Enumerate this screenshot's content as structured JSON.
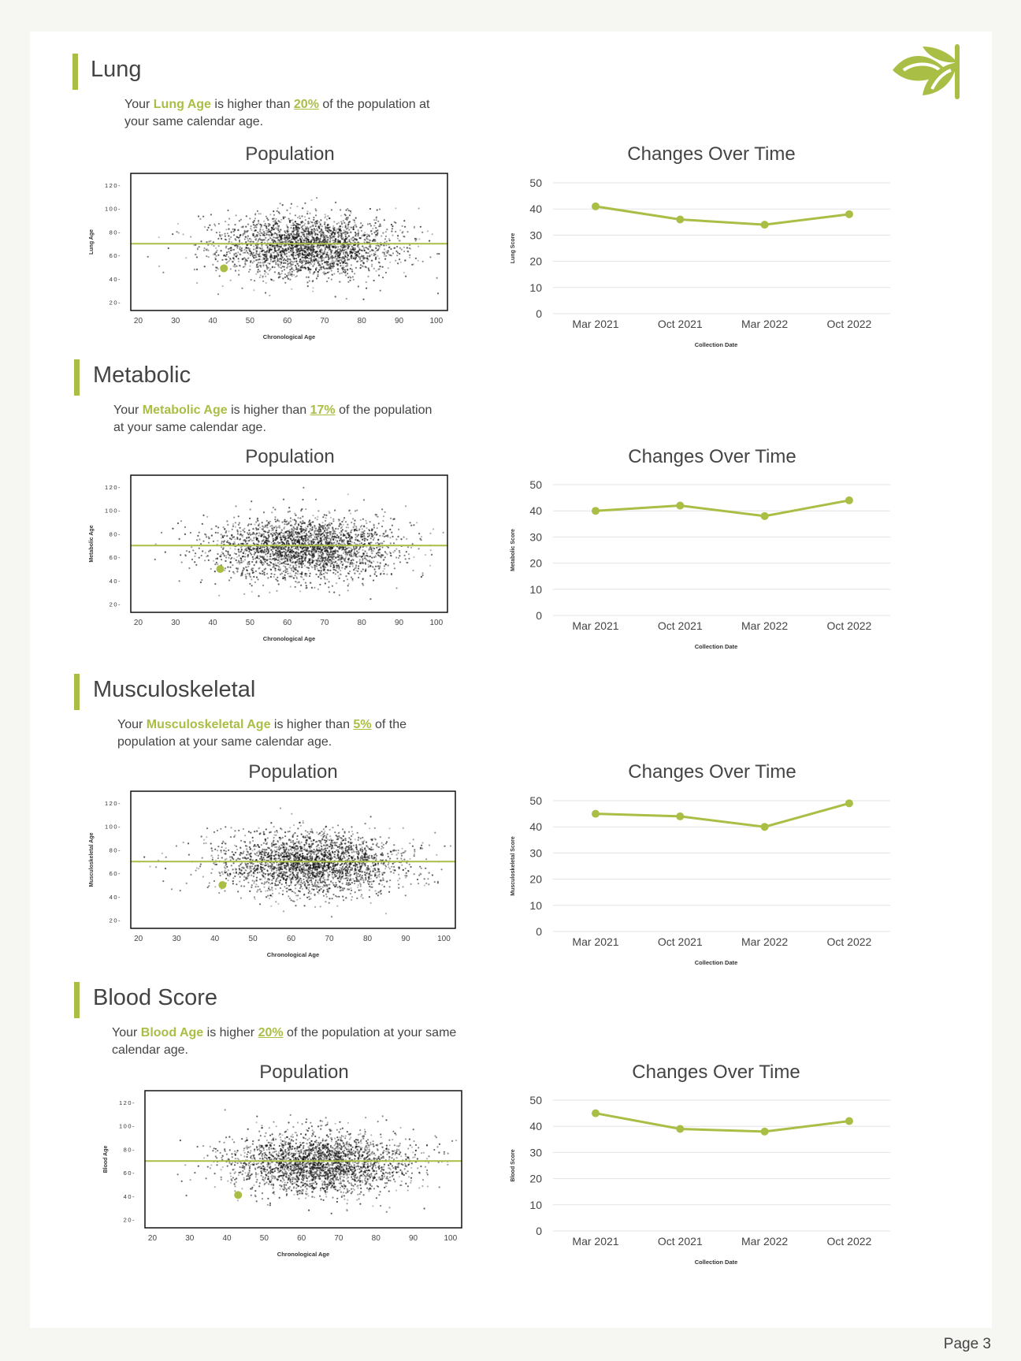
{
  "page": {
    "page_label": "Page 3"
  },
  "colors": {
    "accent": "#a9be45",
    "page_bg": "#f6f6f3",
    "sheet_bg": "#ffffff",
    "text": "#444444"
  },
  "logo": {
    "icon": "leaf-sprout-logo-icon"
  },
  "sections": [
    {
      "title": "Lung",
      "desc_pre": "Your ",
      "desc_highlight": "Lung Age",
      "desc_mid": " is higher than ",
      "desc_pct": "20%",
      "desc_post": " of the population at your same calendar age."
    },
    {
      "title": "Metabolic",
      "desc_pre": "Your ",
      "desc_highlight": "Metabolic Age",
      "desc_mid": " is higher than ",
      "desc_pct": "17%",
      "desc_post": " of the population at your same calendar age."
    },
    {
      "title": "Musculoskeletal",
      "desc_pre": "Your ",
      "desc_highlight": "Musculoskeletal Age",
      "desc_mid": " is higher than ",
      "desc_pct": "5%",
      "desc_post": " of the population at your same calendar age."
    },
    {
      "title": "Blood Score",
      "desc_pre": "Your ",
      "desc_highlight": "Blood Age",
      "desc_mid": " is higher ",
      "desc_pct": "20%",
      "desc_post": " of the population at your same calendar age."
    }
  ],
  "chart_data": [
    {
      "type": "scatter",
      "title": "Population",
      "xlabel": "Chronological Age",
      "ylabel": "Lung Age",
      "x_ticks": [
        "20",
        "30",
        "40",
        "50",
        "60",
        "70",
        "80",
        "90",
        "100"
      ],
      "y_ticks": [
        "120",
        "100",
        "80",
        "60",
        "40",
        "20"
      ],
      "xlim": [
        18,
        103
      ],
      "ylim": [
        13,
        130
      ],
      "reference_line_y": 70,
      "highlight_point": {
        "x": 43,
        "y": 49
      },
      "population_density": {
        "center_x": 65,
        "center_y": 68,
        "spread_x": 12,
        "spread_y": 13
      }
    },
    {
      "type": "line",
      "title": "Changes Over Time",
      "xlabel": "Collection Date",
      "ylabel": "Lung Score",
      "categories": [
        "Mar 2021",
        "Oct 2021",
        "Mar 2022",
        "Oct 2022"
      ],
      "values": [
        41,
        36,
        34,
        38
      ],
      "y_ticks": [
        "50",
        "40",
        "30",
        "20",
        "10",
        "0"
      ],
      "ylim": [
        0,
        50
      ],
      "grid": true
    },
    {
      "type": "scatter",
      "title": "Population",
      "xlabel": "Chronological Age",
      "ylabel": "Metabolic Age",
      "x_ticks": [
        "20",
        "30",
        "40",
        "50",
        "60",
        "70",
        "80",
        "90",
        "100"
      ],
      "y_ticks": [
        "120",
        "100",
        "80",
        "60",
        "40",
        "20"
      ],
      "xlim": [
        18,
        103
      ],
      "ylim": [
        13,
        130
      ],
      "reference_line_y": 70,
      "highlight_point": {
        "x": 42,
        "y": 50
      },
      "population_density": {
        "center_x": 65,
        "center_y": 68,
        "spread_x": 12,
        "spread_y": 13
      }
    },
    {
      "type": "line",
      "title": "Changes Over Time",
      "xlabel": "Collection Date",
      "ylabel": "Metabolic Score",
      "categories": [
        "Mar 2021",
        "Oct 2021",
        "Mar 2022",
        "Oct 2022"
      ],
      "values": [
        40,
        42,
        38,
        44
      ],
      "y_ticks": [
        "50",
        "40",
        "30",
        "20",
        "10",
        "0"
      ],
      "ylim": [
        0,
        50
      ],
      "grid": true
    },
    {
      "type": "scatter",
      "title": "Population",
      "xlabel": "Chronological Age",
      "ylabel": "Musculoskeletal Age",
      "x_ticks": [
        "20",
        "30",
        "40",
        "50",
        "60",
        "70",
        "80",
        "90",
        "100"
      ],
      "y_ticks": [
        "120",
        "100",
        "80",
        "60",
        "40",
        "20"
      ],
      "xlim": [
        18,
        103
      ],
      "ylim": [
        13,
        130
      ],
      "reference_line_y": 70,
      "highlight_point": {
        "x": 42,
        "y": 50
      },
      "population_density": {
        "center_x": 65,
        "center_y": 68,
        "spread_x": 12,
        "spread_y": 13
      }
    },
    {
      "type": "line",
      "title": "Changes Over Time",
      "xlabel": "Collection Date",
      "ylabel": "Musculoskeletal Score",
      "categories": [
        "Mar 2021",
        "Oct 2021",
        "Mar 2022",
        "Oct 2022"
      ],
      "values": [
        45,
        44,
        40,
        49
      ],
      "y_ticks": [
        "50",
        "40",
        "30",
        "20",
        "10",
        "0"
      ],
      "ylim": [
        0,
        50
      ],
      "grid": true
    },
    {
      "type": "scatter",
      "title": "Population",
      "xlabel": "Chronological Age",
      "ylabel": "Blood Age",
      "x_ticks": [
        "20",
        "30",
        "40",
        "50",
        "60",
        "70",
        "80",
        "90",
        "100"
      ],
      "y_ticks": [
        "120",
        "100",
        "80",
        "60",
        "40",
        "20"
      ],
      "xlim": [
        18,
        103
      ],
      "ylim": [
        13,
        130
      ],
      "reference_line_y": 70,
      "highlight_point": {
        "x": 43,
        "y": 41
      },
      "population_density": {
        "center_x": 65,
        "center_y": 68,
        "spread_x": 12,
        "spread_y": 13
      }
    },
    {
      "type": "line",
      "title": "Changes Over Time",
      "xlabel": "Collection Date",
      "ylabel": "Blood Score",
      "categories": [
        "Mar 2021",
        "Oct 2021",
        "Mar 2022",
        "Oct 2022"
      ],
      "values": [
        45,
        39,
        38,
        42
      ],
      "y_ticks": [
        "50",
        "40",
        "30",
        "20",
        "10",
        "0"
      ],
      "ylim": [
        0,
        50
      ],
      "grid": true
    }
  ]
}
